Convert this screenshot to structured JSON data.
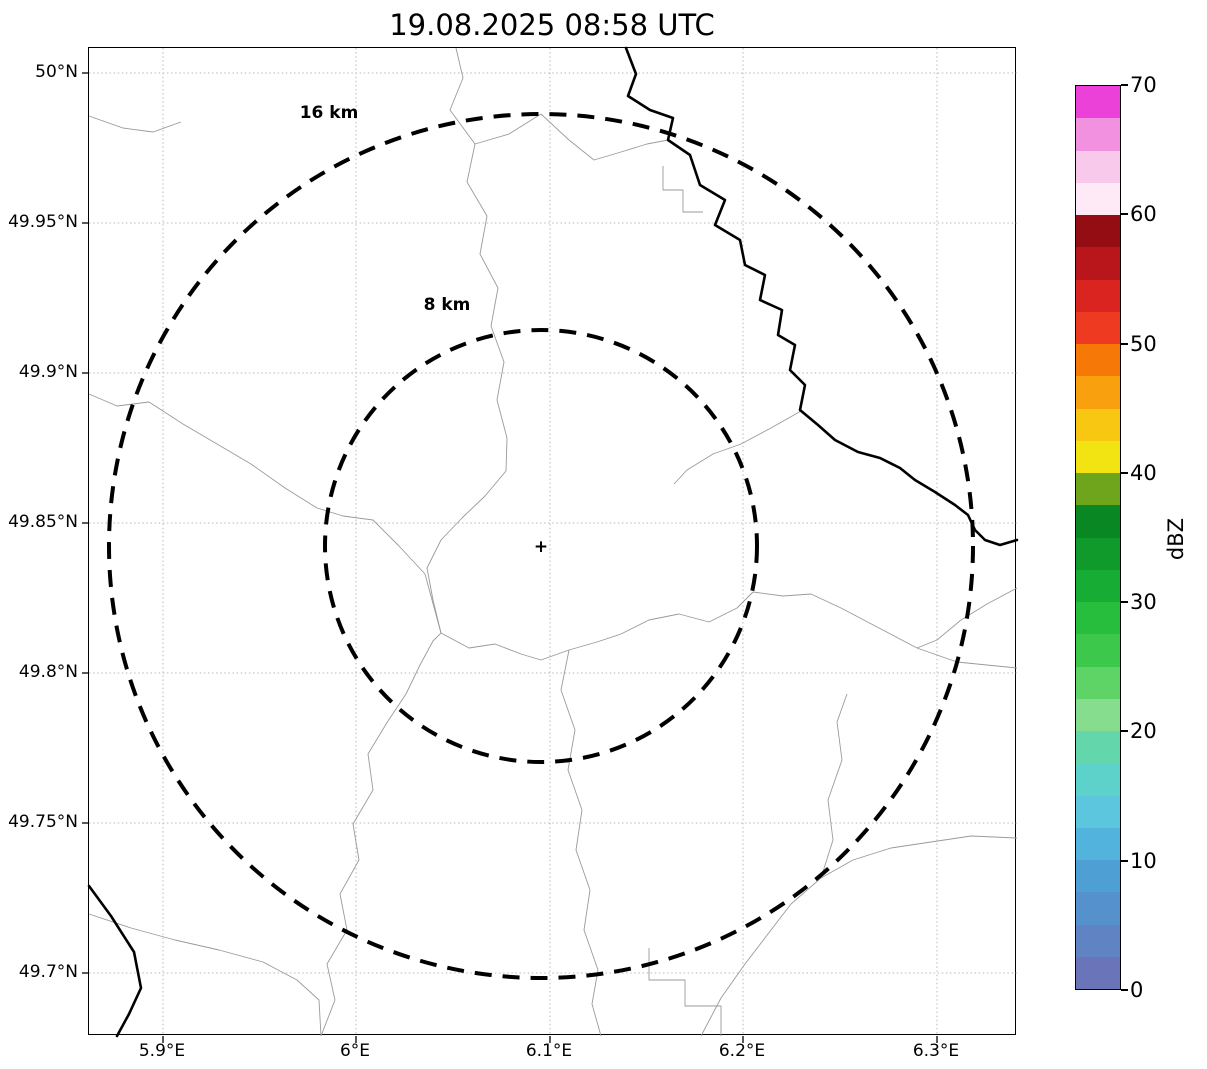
{
  "title": "19.08.2025 08:58 UTC",
  "map": {
    "xticks": [
      "5.9°E",
      "6°E",
      "6.1°E",
      "6.2°E",
      "6.3°E"
    ],
    "yticks": [
      "50°N",
      "49.95°N",
      "49.9°N",
      "49.85°N",
      "49.8°N",
      "49.75°N",
      "49.7°N"
    ],
    "range_rings": [
      {
        "label": "16 km"
      },
      {
        "label": "8 km"
      }
    ],
    "center_marker": "+"
  },
  "colorbar": {
    "label": "dBZ",
    "min": 0,
    "max": 70,
    "ticks": [
      "0",
      "10",
      "20",
      "30",
      "40",
      "50",
      "60",
      "70"
    ],
    "colors_bottom_to_top": [
      "#6a74b8",
      "#5f83c3",
      "#5591cc",
      "#4d9fd4",
      "#52b3dc",
      "#5cc6de",
      "#5dd2cb",
      "#63d6ab",
      "#85dd8d",
      "#5fd466",
      "#3cc94b",
      "#27bd3d",
      "#17ac33",
      "#0f9a2b",
      "#088723",
      "#6fa51d",
      "#f2e413",
      "#f8c711",
      "#f8a00d",
      "#f67908",
      "#ef3a22",
      "#da2420",
      "#b8161a",
      "#930d12",
      "#fdeaf6",
      "#f9c9ec",
      "#f391e1",
      "#ec41d8"
    ]
  },
  "chart_data": {
    "type": "heatmap",
    "title": "19.08.2025 08:58 UTC",
    "x_ticks": [
      "5.9°E",
      "6°E",
      "6.1°E",
      "6.2°E",
      "6.3°E"
    ],
    "y_ticks": [
      "50°N",
      "49.95°N",
      "49.9°N",
      "49.85°N",
      "49.8°N",
      "49.75°N",
      "49.7°N"
    ],
    "values": [],
    "annotations": [
      "16 km",
      "8 km"
    ],
    "colorbar_label": "dBZ",
    "colorbar_range": [
      0,
      70
    ],
    "grid": true,
    "legend_position": "colorbar-right",
    "note": "radar reflectivity display with no echoes visible; dashed range rings at 8 km and 16 km around center marker"
  }
}
